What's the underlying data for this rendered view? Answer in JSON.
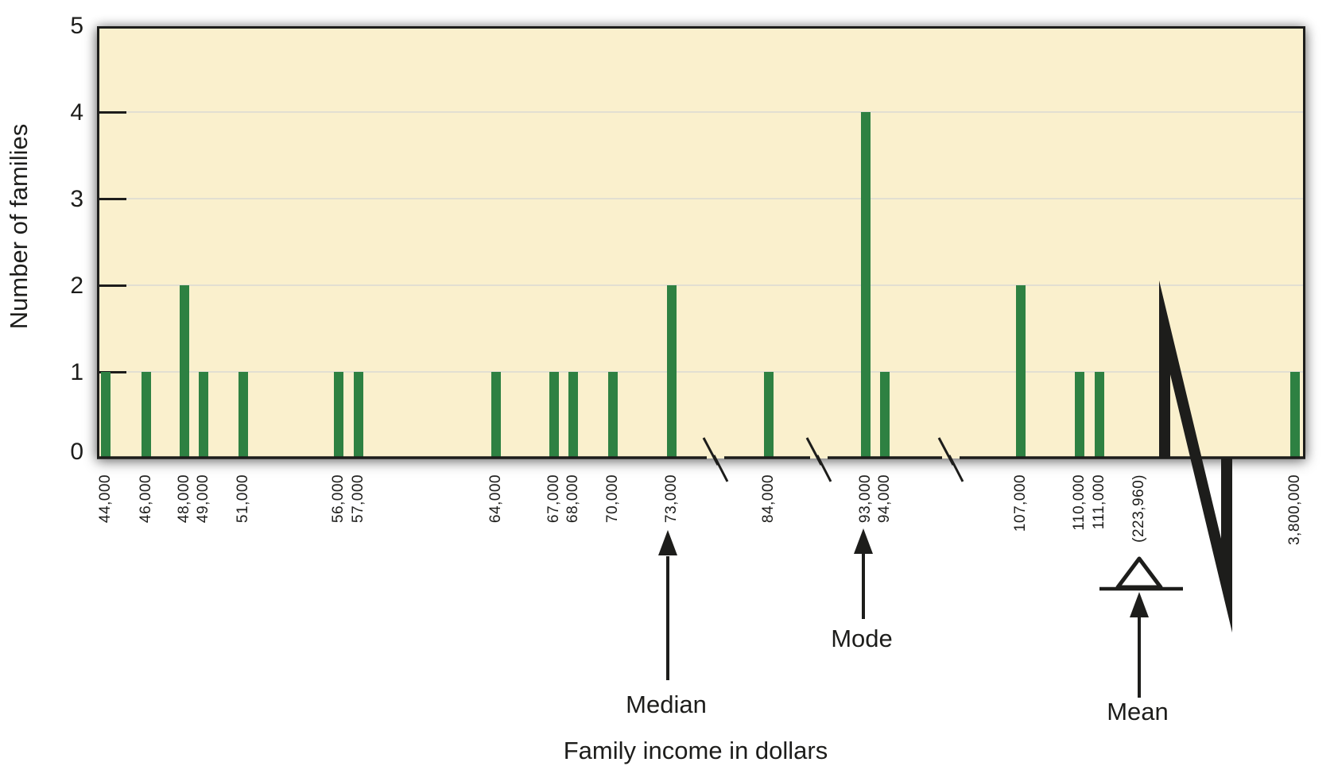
{
  "chart_data": {
    "type": "bar",
    "title": "",
    "ylabel": "Number of families",
    "xlabel": "Family income in dollars",
    "ylim": [
      0,
      5
    ],
    "ytick_labels": [
      "0",
      "1",
      "2",
      "3",
      "4",
      "5"
    ],
    "grid": "horizontal, at 1,2,3,4",
    "legend": "none",
    "categories": [
      "44,000",
      "46,000",
      "48,000",
      "49,000",
      "51,000",
      "56,000",
      "57,000",
      "64,000",
      "67,000",
      "68,000",
      "70,000",
      "73,000",
      "84,000",
      "93,000",
      "94,000",
      "107,000",
      "110,000",
      "111,000",
      "3,800,000"
    ],
    "values": [
      1,
      1,
      2,
      1,
      1,
      1,
      1,
      1,
      1,
      1,
      1,
      2,
      1,
      4,
      1,
      2,
      1,
      1,
      1
    ],
    "axis_breaks": {
      "small_breaks_between": [
        [
          "73,000",
          "84,000"
        ],
        [
          "84,000",
          "93,000"
        ],
        [
          "94,000",
          "107,000"
        ]
      ],
      "large_break_between": [
        "111,000",
        "3,800,000"
      ]
    },
    "annotations": {
      "median": {
        "label": "Median",
        "at_category": "73,000"
      },
      "mode": {
        "label": "Mode",
        "at_category": "93,000"
      },
      "mean": {
        "label": "Mean",
        "value_label": "(223,960)",
        "marker": "fulcrum-triangle"
      }
    },
    "colors": {
      "bar": "#2e8142",
      "plot_background": "#faf0cd",
      "gridline": "#e2dfd2",
      "axis_and_text": "#1d1d1b",
      "page_background": "#ffffff"
    }
  }
}
